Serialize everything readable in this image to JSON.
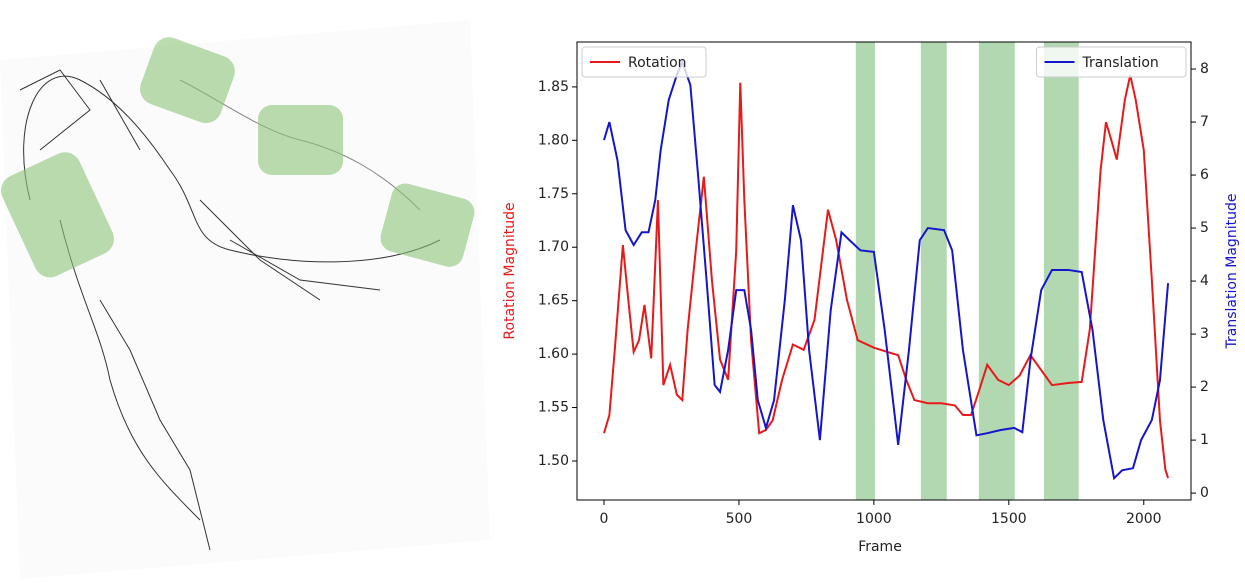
{
  "chart_data": {
    "type": "line",
    "xlabel": "Frame",
    "ylabel": "Rotation Magnitude",
    "y2label": "Translation Magnitude",
    "xlim": [
      -100,
      2175
    ],
    "ylim": [
      1.4635,
      1.892
    ],
    "y2lim": [
      -0.13,
      8.51
    ],
    "xticks": [
      0,
      500,
      1000,
      1500,
      2000
    ],
    "yticks": [
      {
        "value": 1.5,
        "label": "1.50"
      },
      1.55,
      {
        "value": 1.6,
        "label": "1.60"
      },
      1.65,
      {
        "value": 1.7,
        "label": "1.70"
      },
      1.75,
      {
        "value": 1.8,
        "label": "1.80"
      },
      1.85
    ],
    "y2ticks": [
      0,
      1,
      2,
      3,
      4,
      5,
      6,
      7,
      8
    ],
    "spans": [
      [
        933,
        1004
      ],
      [
        1174,
        1270
      ],
      [
        1389,
        1522
      ],
      [
        1630,
        1759
      ]
    ],
    "span_color": "#b2d8b2",
    "series": [
      {
        "name": "Rotation",
        "color": "#e8191a",
        "legend": "upper left",
        "x": [
          0,
          20,
          40,
          70,
          90,
          110,
          130,
          150,
          175,
          200,
          220,
          245,
          270,
          290,
          310,
          340,
          370,
          400,
          430,
          460,
          490,
          505,
          520,
          545,
          575,
          600,
          625,
          660,
          700,
          740,
          780,
          830,
          860,
          900,
          940,
          1000,
          1050,
          1090,
          1120,
          1150,
          1200,
          1250,
          1300,
          1330,
          1360,
          1390,
          1420,
          1460,
          1500,
          1540,
          1580,
          1620,
          1660,
          1720,
          1770,
          1800,
          1840,
          1860,
          1880,
          1900,
          1930,
          1950,
          1970,
          2000,
          2030,
          2060,
          2080,
          2090
        ],
        "values": [
          1.526,
          1.543,
          1.604,
          1.702,
          1.651,
          1.602,
          1.613,
          1.646,
          1.596,
          1.744,
          1.571,
          1.59,
          1.562,
          1.557,
          1.623,
          1.697,
          1.766,
          1.669,
          1.595,
          1.576,
          1.697,
          1.854,
          1.744,
          1.613,
          1.526,
          1.529,
          1.538,
          1.576,
          1.609,
          1.604,
          1.632,
          1.735,
          1.707,
          1.651,
          1.613,
          1.606,
          1.602,
          1.599,
          1.576,
          1.557,
          1.554,
          1.554,
          1.552,
          1.543,
          1.543,
          1.566,
          1.59,
          1.576,
          1.571,
          1.58,
          1.599,
          1.585,
          1.571,
          1.573,
          1.574,
          1.623,
          1.772,
          1.817,
          1.8,
          1.782,
          1.838,
          1.861,
          1.838,
          1.791,
          1.669,
          1.538,
          1.492,
          1.484
        ]
      },
      {
        "name": "Translation",
        "color": "#1515cc",
        "legend": "upper right",
        "axis": "y2",
        "x": [
          0,
          20,
          50,
          80,
          110,
          140,
          165,
          190,
          210,
          240,
          270,
          290,
          320,
          350,
          380,
          410,
          430,
          460,
          490,
          520,
          545,
          570,
          600,
          630,
          670,
          700,
          730,
          760,
          800,
          840,
          880,
          910,
          950,
          1000,
          1040,
          1090,
          1130,
          1170,
          1200,
          1260,
          1290,
          1330,
          1380,
          1420,
          1470,
          1520,
          1550,
          1580,
          1620,
          1660,
          1720,
          1770,
          1810,
          1850,
          1890,
          1920,
          1960,
          1990,
          2030,
          2060,
          2090
        ],
        "values": [
          6.66,
          7.0,
          6.28,
          4.96,
          4.68,
          4.92,
          4.92,
          5.53,
          6.47,
          7.42,
          7.89,
          8.13,
          7.7,
          5.91,
          4.02,
          2.04,
          1.91,
          2.7,
          3.83,
          3.83,
          3.08,
          1.75,
          1.23,
          1.75,
          3.64,
          5.43,
          4.77,
          2.7,
          1.0,
          3.45,
          4.92,
          4.77,
          4.58,
          4.55,
          3.08,
          0.91,
          2.7,
          4.77,
          5.0,
          4.96,
          4.58,
          2.7,
          1.09,
          1.13,
          1.19,
          1.23,
          1.15,
          2.51,
          3.83,
          4.21,
          4.21,
          4.17,
          3.08,
          1.38,
          0.28,
          0.43,
          0.47,
          1.0,
          1.38,
          2.13,
          3.96
        ]
      }
    ]
  }
}
